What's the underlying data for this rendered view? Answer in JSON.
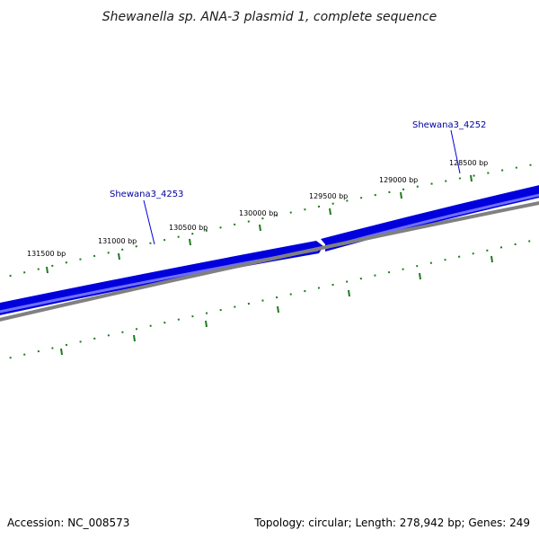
{
  "title": "Shewanella sp. ANA-3 plasmid 1, complete sequence",
  "footer": {
    "accession": "Accession: NC_008573",
    "summary": "Topology: circular; Length: 278,942 bp; Genes: 249"
  },
  "tick_labels": [
    "131500 bp",
    "131000 bp",
    "130500 bp",
    "130000 bp",
    "129500 bp",
    "129000 bp",
    "128500 bp"
  ],
  "genes": [
    {
      "name": "Shewana3_4253",
      "color": "#0000dd"
    },
    {
      "name": "Shewana3_4252",
      "color": "#0000dd"
    }
  ],
  "colors": {
    "forward_strand": "#0000dd",
    "forward_highlight": "#6f6fff",
    "backbone": "#808080",
    "ticks": "#1e7a1e",
    "gene_label": "#0000a0"
  }
}
